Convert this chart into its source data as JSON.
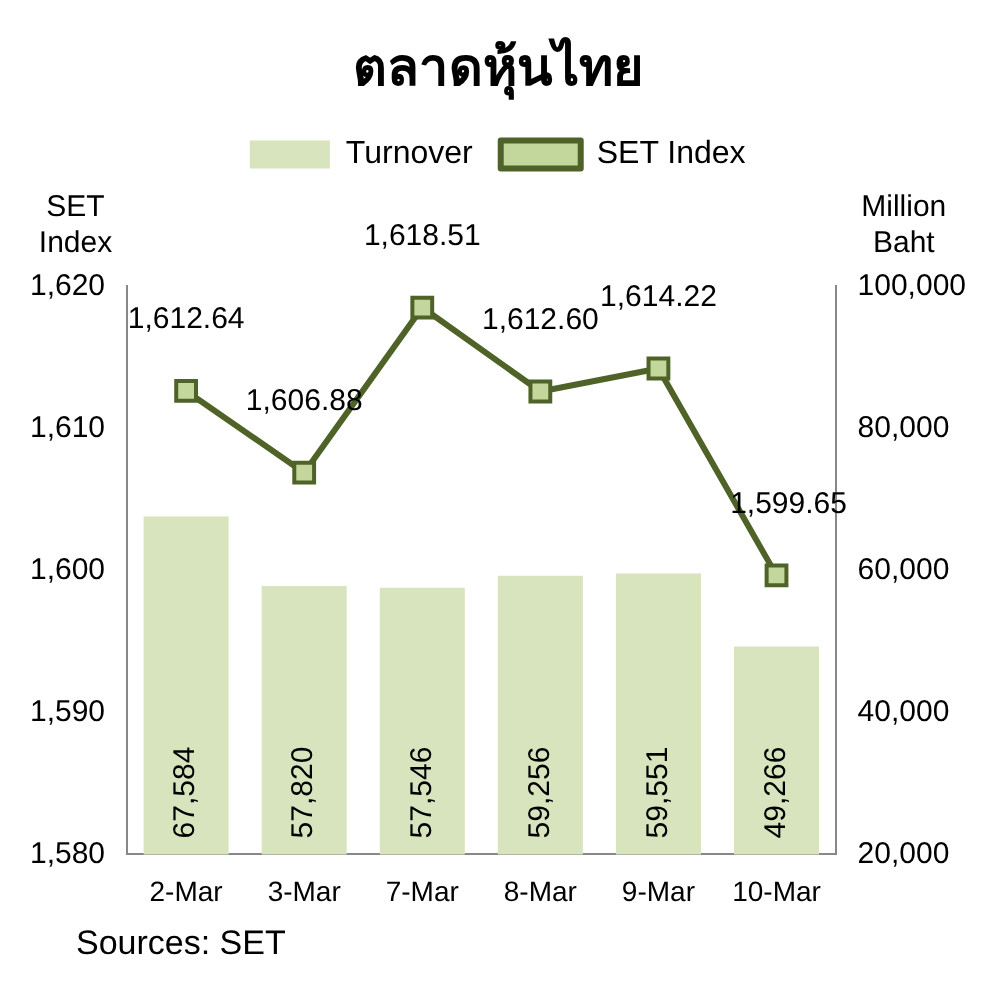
{
  "chart_data": {
    "type": "bar",
    "title": "ตลาดหุ้นไทย",
    "ylabel": "SET Index",
    "y2label": "Million Baht",
    "categories": [
      "2-Mar",
      "3-Mar",
      "7-Mar",
      "8-Mar",
      "9-Mar",
      "10-Mar"
    ],
    "series": [
      {
        "name": "Turnover",
        "axis": "y2",
        "color": "#d7e4bd",
        "values": [
          67584,
          57820,
          57546,
          59256,
          59551,
          49266
        ],
        "value_labels": [
          "67,584",
          "57,820",
          "57,546",
          "59,256",
          "59,551",
          "49,266"
        ]
      },
      {
        "name": "SET Index",
        "type": "line",
        "axis": "y",
        "color": "#4f6228",
        "marker": "square",
        "values": [
          1612.64,
          1606.88,
          1618.51,
          1612.6,
          1614.22,
          1599.65
        ],
        "value_labels": [
          "1,612.64",
          "1,606.88",
          "1,618.51",
          "1,612.60",
          "1,614.22",
          "1,599.65"
        ]
      }
    ],
    "ylim": [
      1580,
      1620
    ],
    "yticks": [
      {
        "value": 1580,
        "label": "1,580"
      },
      {
        "value": 1590,
        "label": "1,590"
      },
      {
        "value": 1600,
        "label": "1,600"
      },
      {
        "value": 1610,
        "label": "1,610"
      },
      {
        "value": 1620,
        "label": "1,620"
      }
    ],
    "y2lim": [
      20000,
      100000
    ],
    "y2ticks": [
      {
        "value": 20000,
        "label": "20,000"
      },
      {
        "value": 40000,
        "label": "40,000"
      },
      {
        "value": 60000,
        "label": "60,000"
      },
      {
        "value": 80000,
        "label": "80,000"
      },
      {
        "value": 100000,
        "label": "100,000"
      }
    ],
    "grid": false,
    "legend": "top",
    "annotations": [
      "Sources: SET"
    ]
  }
}
